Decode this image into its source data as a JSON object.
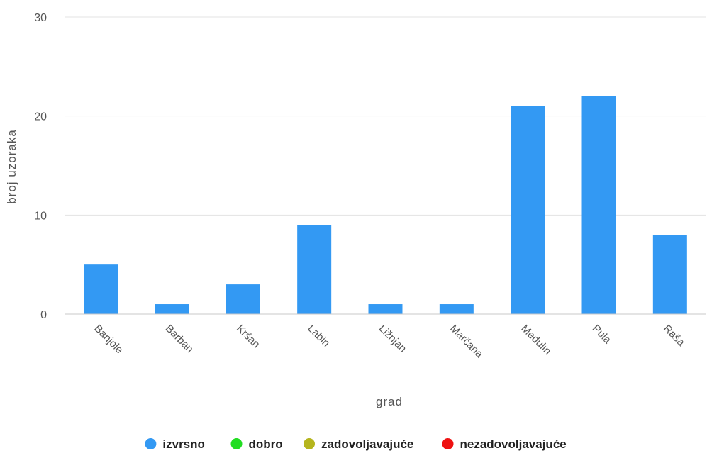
{
  "chart_data": {
    "type": "bar",
    "categories": [
      "Banjole",
      "Barban",
      "Kršan",
      "Labin",
      "Ližnjan",
      "Marčana",
      "Medulin",
      "Pula",
      "Raša"
    ],
    "series": [
      {
        "name": "izvrsno",
        "color": "#3399f3",
        "values": [
          5,
          1,
          3,
          9,
          1,
          1,
          21,
          22,
          8
        ]
      },
      {
        "name": "dobro",
        "color": "#22dd22",
        "values": [
          0,
          0,
          0,
          0,
          0,
          0,
          0,
          0,
          0
        ]
      },
      {
        "name": "zadovoljavajuće",
        "color": "#b5b51e",
        "values": [
          0,
          0,
          0,
          0,
          0,
          0,
          0,
          0,
          0
        ]
      },
      {
        "name": "nezadovoljavajuće",
        "color": "#ee1111",
        "values": [
          0,
          0,
          0,
          0,
          0,
          0,
          0,
          0,
          0
        ]
      }
    ],
    "xlabel": "grad",
    "ylabel": "broj uzoraka",
    "ylim": [
      0,
      30
    ],
    "yticks": [
      0,
      10,
      20,
      30
    ],
    "grid": true,
    "legend_position": "bottom-center"
  }
}
